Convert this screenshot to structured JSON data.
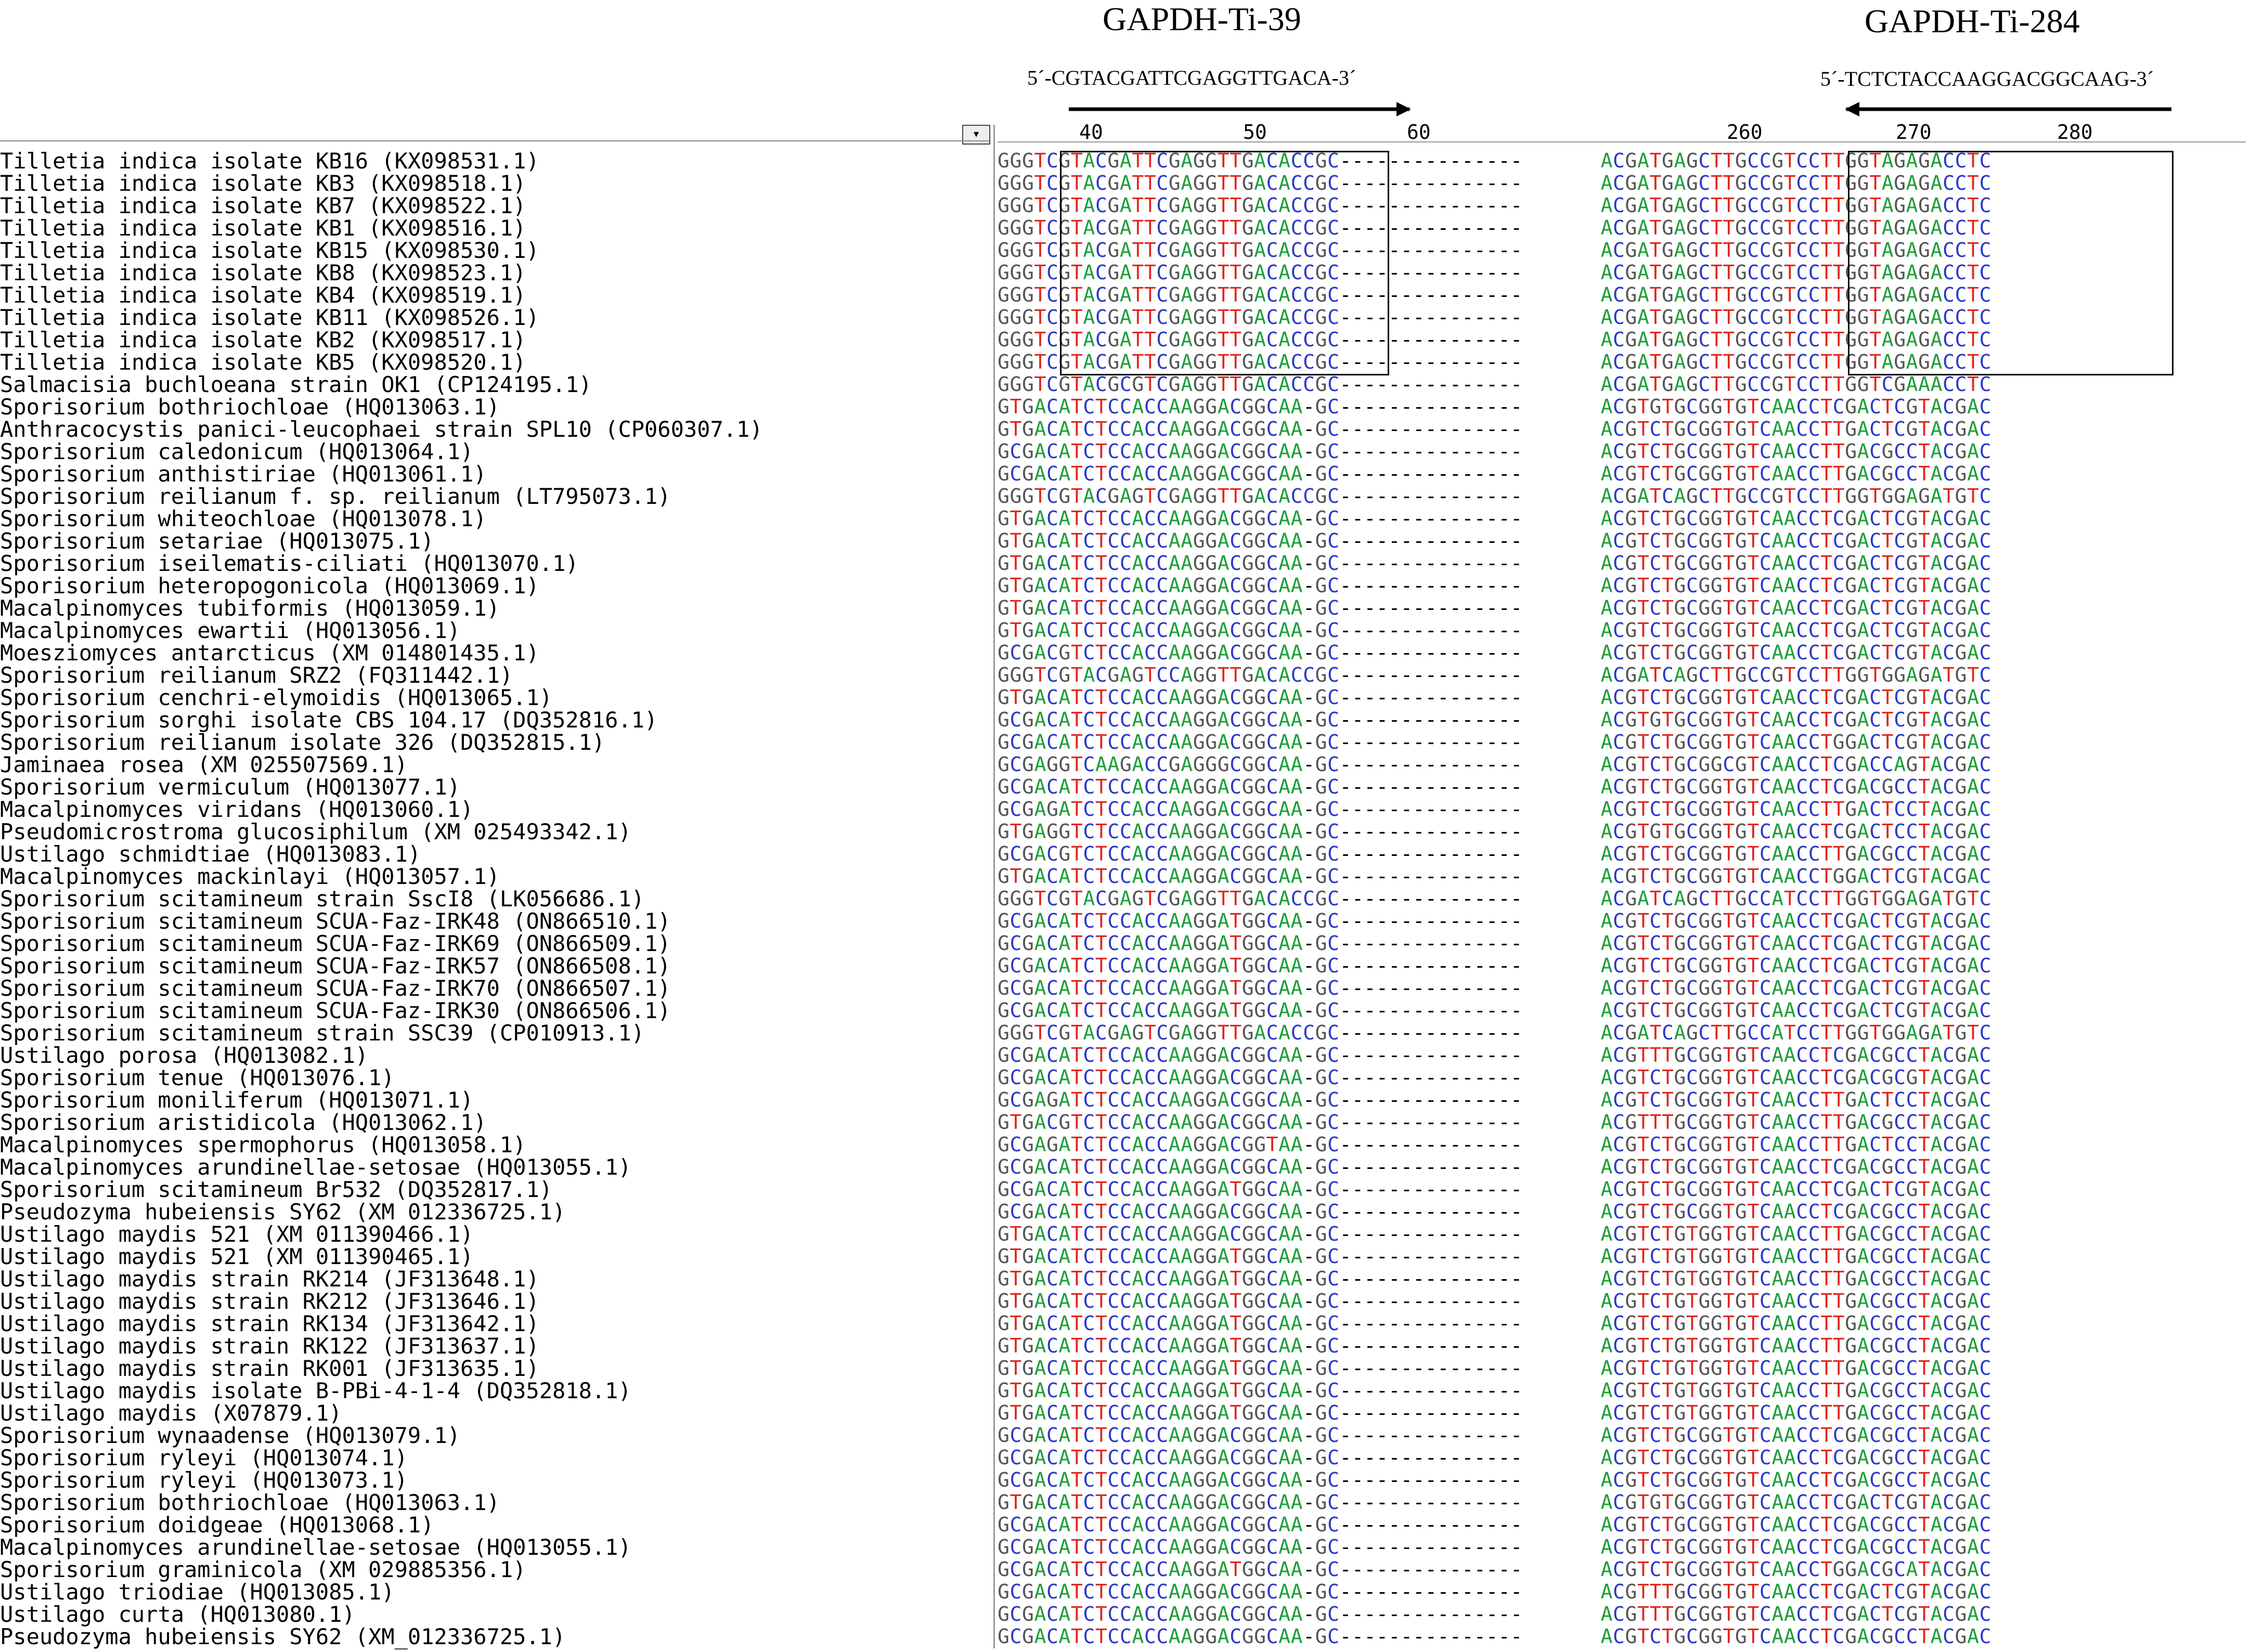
{
  "primers": {
    "forward": {
      "name": "GAPDH-Ti-39",
      "sequence": "5´-CGTACGATTCGAGGTTGACA-3´"
    },
    "reverse": {
      "name": "GAPDH-Ti-284",
      "sequence": "5´-TCTCTACCAAGGACGGCAAG-3´"
    }
  },
  "ruler": {
    "left": [
      "40",
      "50",
      "60"
    ],
    "right": [
      "260",
      "270",
      "280"
    ]
  },
  "toolbar": {
    "dropdown_glyph": "▾"
  },
  "rows": [
    {
      "name": "Tilletia indica isolate KB16 (KX098531.1)",
      "left": "GGGTCGTACGATTCGAGGTTGACACCGC",
      "right": "ACGATGAGCTTGCCGTCCTTGGTAGAGACCTC"
    },
    {
      "name": "Tilletia indica isolate KB3 (KX098518.1)",
      "left": "GGGTCGTACGATTCGAGGTTGACACCGC",
      "right": "ACGATGAGCTTGCCGTCCTTGGTAGAGACCTC"
    },
    {
      "name": "Tilletia indica isolate KB7 (KX098522.1)",
      "left": "GGGTCGTACGATTCGAGGTTGACACCGC",
      "right": "ACGATGAGCTTGCCGTCCTTGGTAGAGACCTC"
    },
    {
      "name": "Tilletia indica isolate KB1 (KX098516.1)",
      "left": "GGGTCGTACGATTCGAGGTTGACACCGC",
      "right": "ACGATGAGCTTGCCGTCCTTGGTAGAGACCTC"
    },
    {
      "name": "Tilletia indica isolate KB15 (KX098530.1)",
      "left": "GGGTCGTACGATTCGAGGTTGACACCGC",
      "right": "ACGATGAGCTTGCCGTCCTTGGTAGAGACCTC"
    },
    {
      "name": "Tilletia indica isolate KB8 (KX098523.1)",
      "left": "GGGTCGTACGATTCGAGGTTGACACCGC",
      "right": "ACGATGAGCTTGCCGTCCTTGGTAGAGACCTC"
    },
    {
      "name": "Tilletia indica isolate KB4 (KX098519.1)",
      "left": "GGGTCGTACGATTCGAGGTTGACACCGC",
      "right": "ACGATGAGCTTGCCGTCCTTGGTAGAGACCTC"
    },
    {
      "name": "Tilletia indica isolate KB11 (KX098526.1)",
      "left": "GGGTCGTACGATTCGAGGTTGACACCGC",
      "right": "ACGATGAGCTTGCCGTCCTTGGTAGAGACCTC"
    },
    {
      "name": "Tilletia indica isolate KB2 (KX098517.1)",
      "left": "GGGTCGTACGATTCGAGGTTGACACCGC",
      "right": "ACGATGAGCTTGCCGTCCTTGGTAGAGACCTC"
    },
    {
      "name": "Tilletia indica isolate KB5 (KX098520.1)",
      "left": "GGGTCGTACGATTCGAGGTTGACACCGC",
      "right": "ACGATGAGCTTGCCGTCCTTGGTAGAGACCTC"
    },
    {
      "name": "Salmacisia buchloeana strain OK1 (CP124195.1)",
      "left": "GGGTCGTACGCGTCGAGGTTGACACCGC",
      "right": "ACGATGAGCTTGCCGTCCTTGGTCGAAACCTC"
    },
    {
      "name": "Sporisorium bothriochloae (HQ013063.1)",
      "left": "GTGACATCTCCACCAAGGACGGCAA-GC",
      "right": "ACGTGTGCGGTGTCAACCTCGACTCGTACGAC"
    },
    {
      "name": "Anthracocystis panici-leucophaei strain SPL10 (CP060307.1)",
      "left": "GTGACATCTCCACCAAGGACGGCAA-GC",
      "right": "ACGTCTGCGGTGTCAACCTTGACTCGTACGAC"
    },
    {
      "name": "Sporisorium caledonicum (HQ013064.1)",
      "left": "GCGACATCTCCACCAAGGACGGCAA-GC",
      "right": "ACGTCTGCGGTGTCAACCTTGACGCCTACGAC"
    },
    {
      "name": "Sporisorium anthistiriae (HQ013061.1)",
      "left": "GCGACATCTCCACCAAGGACGGCAA-GC",
      "right": "ACGTCTGCGGTGTCAACCTTGACGCCTACGAC"
    },
    {
      "name": "Sporisorium reilianum f. sp. reilianum (LT795073.1)",
      "left": "GGGTCGTACGAGTCGAGGTTGACACCGC",
      "right": "ACGATCAGCTTGCCGTCCTTGGTGGAGATGTC"
    },
    {
      "name": "Sporisorium whiteochloae (HQ013078.1)",
      "left": "GTGACATCTCCACCAAGGACGGCAA-GC",
      "right": "ACGTCTGCGGTGTCAACCTCGACTCGTACGAC"
    },
    {
      "name": "Sporisorium setariae (HQ013075.1)",
      "left": "GTGACATCTCCACCAAGGACGGCAA-GC",
      "right": "ACGTCTGCGGTGTCAACCTCGACTCGTACGAC"
    },
    {
      "name": "Sporisorium iseilematis-ciliati (HQ013070.1)",
      "left": "GTGACATCTCCACCAAGGACGGCAA-GC",
      "right": "ACGTCTGCGGTGTCAACCTCGACTCGTACGAC"
    },
    {
      "name": "Sporisorium heteropogonicola (HQ013069.1)",
      "left": "GTGACATCTCCACCAAGGACGGCAA-GC",
      "right": "ACGTCTGCGGTGTCAACCTCGACTCGTACGAC"
    },
    {
      "name": "Macalpinomyces tubiformis (HQ013059.1)",
      "left": "GTGACATCTCCACCAAGGACGGCAA-GC",
      "right": "ACGTCTGCGGTGTCAACCTCGACTCGTACGAC"
    },
    {
      "name": "Macalpinomyces ewartii (HQ013056.1)",
      "left": "GTGACATCTCCACCAAGGACGGCAA-GC",
      "right": "ACGTCTGCGGTGTCAACCTCGACTCGTACGAC"
    },
    {
      "name": "Moesziomyces antarcticus (XM 014801435.1)",
      "left": "GCGACGTCTCCACCAAGGACGGCAA-GC",
      "right": "ACGTCTGCGGTGTCAACCTCGACTCGTACGAC"
    },
    {
      "name": "Sporisorium reilianum SRZ2 (FQ311442.1)",
      "left": "GGGTCGTACGAGTCCAGGTTGACACCGC",
      "right": "ACGATCAGCTTGCCGTCCTTGGTGGAGATGTC"
    },
    {
      "name": "Sporisorium cenchri-elymoidis (HQ013065.1)",
      "left": "GTGACATCTCCACCAAGGACGGCAA-GC",
      "right": "ACGTCTGCGGTGTCAACCTCGACTCGTACGAC"
    },
    {
      "name": "Sporisorium sorghi isolate CBS 104.17 (DQ352816.1)",
      "left": "GCGACATCTCCACCAAGGACGGCAA-GC",
      "right": "ACGTGTGCGGTGTCAACCTCGACTCGTACGAC"
    },
    {
      "name": "Sporisorium reilianum isolate 326 (DQ352815.1)",
      "left": "GCGACATCTCCACCAAGGACGGCAA-GC",
      "right": "ACGTCTGCGGTGTCAACCTGGACTCGTACGAC"
    },
    {
      "name": "Jaminaea rosea (XM 025507569.1)",
      "left": "GCGAGGTCAAGACCGAGGGCGGCAA-GC",
      "right": "ACGTCTGCGGCGTCAACCTCGACCAGTACGAC"
    },
    {
      "name": "Sporisorium vermiculum (HQ013077.1)",
      "left": "GCGACATCTCCACCAAGGACGGCAA-GC",
      "right": "ACGTCTGCGGTGTCAACCTCGACGCCTACGAC"
    },
    {
      "name": "Macalpinomyces viridans (HQ013060.1)",
      "left": "GCGAGATCTCCACCAAGGACGGCAA-GC",
      "right": "ACGTCTGCGGTGTCAACCTTGACTCCTACGAC"
    },
    {
      "name": "Pseudomicrostroma glucosiphilum (XM 025493342.1)",
      "left": "GTGAGGTCTCCACCAAGGACGGCAA-GC",
      "right": "ACGTGTGCGGTGTCAACCTCGACTCCTACGAC"
    },
    {
      "name": "Ustilago schmidtiae (HQ013083.1)",
      "left": "GCGACGTCTCCACCAAGGACGGCAA-GC",
      "right": "ACGTCTGCGGTGTCAACCTTGACGCCTACGAC"
    },
    {
      "name": "Macalpinomyces mackinlayi (HQ013057.1)",
      "left": "GTGACATCTCCACCAAGGACGGCAA-GC",
      "right": "ACGTCTGCGGTGTCAACCTGGACTCGTACGAC"
    },
    {
      "name": "Sporisorium scitamineum strain SscI8 (LK056686.1)",
      "left": "GGGTCGTACGAGTCGAGGTTGACACCGC",
      "right": "ACGATCAGCTTGCCATCCTTGGTGGAGATGTC"
    },
    {
      "name": "Sporisorium scitamineum SCUA-Faz-IRK48 (ON866510.1)",
      "left": "GCGACATCTCCACCAAGGATGGCAA-GC",
      "right": "ACGTCTGCGGTGTCAACCTCGACTCGTACGAC"
    },
    {
      "name": "Sporisorium scitamineum SCUA-Faz-IRK69 (ON866509.1)",
      "left": "GCGACATCTCCACCAAGGATGGCAA-GC",
      "right": "ACGTCTGCGGTGTCAACCTCGACTCGTACGAC"
    },
    {
      "name": "Sporisorium scitamineum SCUA-Faz-IRK57 (ON866508.1)",
      "left": "GCGACATCTCCACCAAGGATGGCAA-GC",
      "right": "ACGTCTGCGGTGTCAACCTCGACTCGTACGAC"
    },
    {
      "name": "Sporisorium scitamineum SCUA-Faz-IRK70 (ON866507.1)",
      "left": "GCGACATCTCCACCAAGGATGGCAA-GC",
      "right": "ACGTCTGCGGTGTCAACCTCGACTCGTACGAC"
    },
    {
      "name": "Sporisorium scitamineum SCUA-Faz-IRK30 (ON866506.1)",
      "left": "GCGACATCTCCACCAAGGATGGCAA-GC",
      "right": "ACGTCTGCGGTGTCAACCTCGACTCGTACGAC"
    },
    {
      "name": "Sporisorium scitamineum strain SSC39 (CP010913.1)",
      "left": "GGGTCGTACGAGTCGAGGTTGACACCGC",
      "right": "ACGATCAGCTTGCCATCCTTGGTGGAGATGTC"
    },
    {
      "name": "Ustilago porosa (HQ013082.1)",
      "left": "GCGACATCTCCACCAAGGACGGCAA-GC",
      "right": "ACGTTTGCGGTGTCAACCTCGACGCCTACGAC"
    },
    {
      "name": "Sporisorium tenue (HQ013076.1)",
      "left": "GCGACATCTCCACCAAGGACGGCAA-GC",
      "right": "ACGTCTGCGGTGTCAACCTCGACGCGTACGAC"
    },
    {
      "name": "Sporisorium moniliferum (HQ013071.1)",
      "left": "GCGAGATCTCCACCAAGGACGGCAA-GC",
      "right": "ACGTCTGCGGTGTCAACCTTGACTCCTACGAC"
    },
    {
      "name": "Sporisorium aristidicola (HQ013062.1)",
      "left": "GTGACGTCTCCACCAAGGACGGCAA-GC",
      "right": "ACGTTTGCGGTGTCAACCTTGACGCCTACGAC"
    },
    {
      "name": "Macalpinomyces spermophorus (HQ013058.1)",
      "left": "GCGAGATCTCCACCAAGGACGGTAA-GC",
      "right": "ACGTCTGCGGTGTCAACCTTGACTCCTACGAC"
    },
    {
      "name": "Macalpinomyces arundinellae-setosae (HQ013055.1)",
      "left": "GCGACATCTCCACCAAGGACGGCAA-GC",
      "right": "ACGTCTGCGGTGTCAACCTCGACGCCTACGAC"
    },
    {
      "name": "Sporisorium scitamineum Br532 (DQ352817.1)",
      "left": "GCGACATCTCCACCAAGGATGGCAA-GC",
      "right": "ACGTCTGCGGTGTCAACCTCGACTCGTACGAC"
    },
    {
      "name": "Pseudozyma hubeiensis SY62 (XM 012336725.1)",
      "left": "GCGACATCTCCACCAAGGACGGCAA-GC",
      "right": "ACGTCTGCGGTGTCAACCTCGACGCCTACGAC"
    },
    {
      "name": "Ustilago maydis 521 (XM 011390466.1)",
      "left": "GTGACATCTCCACCAAGGACGGCAA-GC",
      "right": "ACGTCTGTGGTGTCAACCTTGACGCCTACGAC"
    },
    {
      "name": "Ustilago maydis 521 (XM 011390465.1)",
      "left": "GTGACATCTCCACCAAGGATGGCAA-GC",
      "right": "ACGTCTGTGGTGTCAACCTTGACGCCTACGAC"
    },
    {
      "name": "Ustilago maydis strain RK214 (JF313648.1)",
      "left": "GTGACATCTCCACCAAGGATGGCAA-GC",
      "right": "ACGTCTGTGGTGTCAACCTTGACGCCTACGAC"
    },
    {
      "name": "Ustilago maydis strain RK212 (JF313646.1)",
      "left": "GTGACATCTCCACCAAGGATGGCAA-GC",
      "right": "ACGTCTGTGGTGTCAACCTTGACGCCTACGAC"
    },
    {
      "name": "Ustilago maydis strain RK134 (JF313642.1)",
      "left": "GTGACATCTCCACCAAGGATGGCAA-GC",
      "right": "ACGTCTGTGGTGTCAACCTTGACGCCTACGAC"
    },
    {
      "name": "Ustilago maydis strain RK122 (JF313637.1)",
      "left": "GTGACATCTCCACCAAGGATGGCAA-GC",
      "right": "ACGTCTGTGGTGTCAACCTTGACGCCTACGAC"
    },
    {
      "name": "Ustilago maydis strain RK001 (JF313635.1)",
      "left": "GTGACATCTCCACCAAGGATGGCAA-GC",
      "right": "ACGTCTGTGGTGTCAACCTTGACGCCTACGAC"
    },
    {
      "name": "Ustilago maydis isolate B-PBi-4-1-4 (DQ352818.1)",
      "left": "GTGACATCTCCACCAAGGATGGCAA-GC",
      "right": "ACGTCTGTGGTGTCAACCTTGACGCCTACGAC"
    },
    {
      "name": "Ustilago maydis (X07879.1)",
      "left": "GTGACATCTCCACCAAGGATGGCAA-GC",
      "right": "ACGTCTGTGGTGTCAACCTTGACGCCTACGAC"
    },
    {
      "name": "Sporisorium wynaadense (HQ013079.1)",
      "left": "GCGACATCTCCACCAAGGACGGCAA-GC",
      "right": "ACGTCTGCGGTGTCAACCTCGACGCCTACGAC"
    },
    {
      "name": "Sporisorium ryleyi (HQ013074.1)",
      "left": "GCGACATCTCCACCAAGGACGGCAA-GC",
      "right": "ACGTCTGCGGTGTCAACCTCGACGCCTACGAC"
    },
    {
      "name": "Sporisorium ryleyi (HQ013073.1)",
      "left": "GCGACATCTCCACCAAGGACGGCAA-GC",
      "right": "ACGTCTGCGGTGTCAACCTCGACGCCTACGAC"
    },
    {
      "name": "Sporisorium bothriochloae (HQ013063.1)",
      "left": "GTGACATCTCCACCAAGGACGGCAA-GC",
      "right": "ACGTGTGCGGTGTCAACCTCGACTCGTACGAC"
    },
    {
      "name": "Sporisorium doidgeae (HQ013068.1)",
      "left": "GCGACATCTCCACCAAGGACGGCAA-GC",
      "right": "ACGTCTGCGGTGTCAACCTCGACGCCTACGAC"
    },
    {
      "name": "Macalpinomyces arundinellae-setosae (HQ013055.1)",
      "left": "GCGACATCTCCACCAAGGACGGCAA-GC",
      "right": "ACGTCTGCGGTGTCAACCTCGACGCCTACGAC"
    },
    {
      "name": "Sporisorium graminicola (XM 029885356.1)",
      "left": "GCGACATCTCCACCAAGGATGGCAA-GC",
      "right": "ACGTCTGCGGTGTCAACCTGGACGCATACGAC"
    },
    {
      "name": "Ustilago triodiae (HQ013085.1)",
      "left": "GCGACATCTCCACCAAGGACGGCAA-GC",
      "right": "ACGTTTGCGGTGTCAACCTCGACTCGTACGAC"
    },
    {
      "name": "Ustilago curta (HQ013080.1)",
      "left": "GCGACATCTCCACCAAGGACGGCAA-GC",
      "right": "ACGTTTGCGGTGTCAACCTCGACTCGTACGAC"
    },
    {
      "name": "Pseudozyma hubeiensis SY62 (XM_012336725.1)",
      "left": "GCGACATCTCCACCAAGGACGGCAA-GC",
      "right": "ACGTCTGCGGTGTCAACCTCGACGCCTACGAC"
    }
  ]
}
